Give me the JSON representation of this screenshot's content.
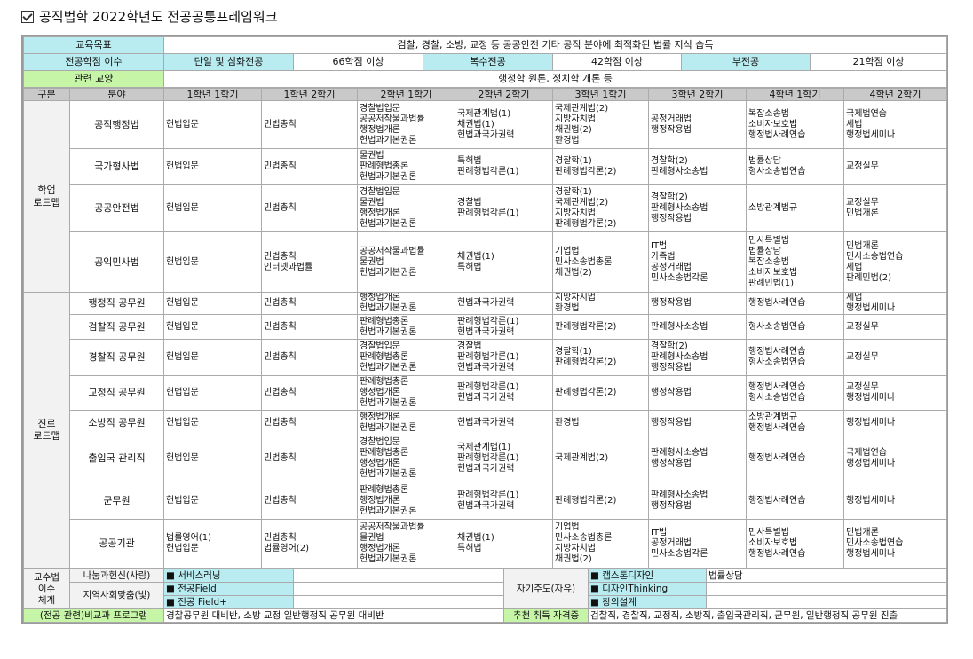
{
  "title": "공직법학 2022학년도 전공공통프레임워크",
  "goal": {
    "label": "교육목표",
    "text": "검찰, 경찰, 소방, 교정 등 공공안전 기타 공직 분야에 최적화된 법률 지식 습득"
  },
  "credits": {
    "label": "전공학점 이수",
    "single_label": "단일 및 심화전공",
    "single_value": "66학점 이상",
    "double_label": "복수전공",
    "double_value": "42학점 이상",
    "minor_label": "부전공",
    "minor_value": "21학점 이상"
  },
  "liberal": {
    "label": "관련 교양",
    "text": "행정학 원론, 정치학 개론 등"
  },
  "header": [
    "구분",
    "분야",
    "1학년 1학기",
    "1학년 2학기",
    "2학년 1학기",
    "2학년 2학기",
    "3학년 1학기",
    "3학년 2학기",
    "4학년 1학기",
    "4학년 2학기"
  ],
  "groups": [
    {
      "label": "학업\n로드맵",
      "rows": [
        {
          "field": "공직행정법",
          "cells": [
            "헌법입문",
            "민법총칙",
            "경찰법입문\n공공저작물과법률\n행정법개론\n헌법과기본권론",
            "국제관계법(1)\n채권법(1)\n헌법과국가권력",
            "국제관계법(2)\n지방자치법\n채권법(2)\n환경법",
            "공정거래법\n행정작용법",
            "복잡소송법\n소비자보호법\n행정법사례연습",
            "국제법연습\n세법\n행정법세미나"
          ]
        },
        {
          "field": "국가형사법",
          "cells": [
            "헌법입문",
            "민법총칙",
            "물권법\n판례형법총론\n헌법과기본권론",
            "특허법\n판례형법각론(1)",
            "경찰학(1)\n판례형법각론(2)",
            "경찰학(2)\n판례형사소송법",
            "법률상담\n형사소송법연습",
            "교정실무"
          ]
        },
        {
          "field": "공공안전법",
          "cells": [
            "헌법입문",
            "민법총칙",
            "경찰법입문\n물권법\n행정법개론\n헌법과기본권론",
            "경찰법\n판례형법각론(1)",
            "경찰학(1)\n국제관계법(2)\n지방자치법\n판례형법각론(2)",
            "경찰학(2)\n판례형사소송법\n행정작용법",
            "소방관계법규",
            "교정실무\n민법개론"
          ]
        },
        {
          "field": "공익민사법",
          "cells": [
            "헌법입문",
            "민법총칙\n인터넷과법률",
            "공공저작물과법률\n물권법\n헌법과기본권론",
            "채권법(1)\n특허법",
            "기업법\n민사소송법총론\n채권법(2)",
            "IT법\n가족법\n공정거래법\n민사소송법각론",
            "민사특별법\n법률상담\n복잡소송법\n소비자보호법\n판례민법(1)",
            "민법개론\n민사소송법연습\n세법\n판례민법(2)"
          ]
        }
      ]
    },
    {
      "label": "진로\n로드맵",
      "rows": [
        {
          "field": "행정직 공무원",
          "cells": [
            "헌법입문",
            "민법총칙",
            "행정법개론\n헌법과기본권론",
            "헌법과국가권력",
            "지방자치법\n환경법",
            "행정작용법",
            "행정법사례연습",
            "세법\n행정법세미나"
          ]
        },
        {
          "field": "검찰직 공무원",
          "cells": [
            "헌법입문",
            "민법총칙",
            "판례형법총론\n헌법과기본권론",
            "판례형법각론(1)\n헌법과국가권력",
            "판례형법각론(2)",
            "판례형사소송법",
            "형사소송법연습",
            "교정실무"
          ]
        },
        {
          "field": "경찰직 공무원",
          "cells": [
            "헌법입문",
            "민법총칙",
            "경찰법입문\n판례형법총론\n헌법과기본권론",
            "경찰법\n판례형법각론(1)\n헌법과국가권력",
            "경찰학(1)\n판례형법각론(2)",
            "경찰학(2)\n판례형사소송법\n행정작용법",
            "행정법사례연습\n형사소송법연습",
            "교정실무"
          ]
        },
        {
          "field": "교정직 공무원",
          "cells": [
            "헌법입문",
            "민법총칙",
            "판례형법총론\n행정법개론\n헌법과기본권론",
            "판례형법각론(1)\n헌법과국가권력",
            "판례형법각론(2)",
            "행정작용법",
            "행정법사례연습\n형사소송법연습",
            "교정실무\n행정법세미나"
          ]
        },
        {
          "field": "소방직 공무원",
          "cells": [
            "헌법입문",
            "민법총칙",
            "행정법개론\n헌법과기본권론",
            "헌법과국가권력",
            "환경법",
            "행정작용법",
            "소방관계법규\n행정법사례연습",
            "행정법세미나"
          ]
        },
        {
          "field": "출입국 관리직",
          "cells": [
            "헌법입문",
            "민법총칙",
            "경찰법입문\n판례형법총론\n행정법개론\n헌법과기본권론",
            "국제관계법(1)\n판례형법각론(1)\n헌법과국가권력",
            "국제관계법(2)",
            "판례형사소송법\n행정작용법",
            "행정법사례연습",
            "국제법연습\n행정법세미나"
          ]
        },
        {
          "field": "군무원",
          "cells": [
            "헌법입문",
            "민법총칙",
            "판례형법총론\n행정법개론\n헌법과기본권론",
            "판례형법각론(1)\n헌법과국가권력",
            "판례형법각론(2)",
            "판례형사소송법\n행정작용법",
            "행정법사례연습",
            "행정법세미나"
          ]
        },
        {
          "field": "공공기관",
          "cells": [
            "법률영어(1)\n헌법입문",
            "민법총칙\n법률영어(2)",
            "공공저작물과법률\n물권법\n행정법개론\n헌법과기본권론",
            "채권법(1)\n특허법",
            "기업법\n민사소송법총론\n지방자치법\n채권법(2)",
            "IT법\n공정거래법\n민사소송법각론",
            "민사특별법\n소비자보호법\n행정법사례연습",
            "민법개론\n민사소송법연습\n행정법세미나"
          ]
        }
      ]
    }
  ],
  "teaching": {
    "label": "교수법\n이수\n체계",
    "sharing_label": "나눔과헌신(사랑)",
    "regional_label": "지역사회맞춤(빛)",
    "service_learning": "■ 서비스러닝",
    "major_field": "■ 전공Field",
    "major_field_plus": "■ 전공 Field+",
    "self_label": "자기주도(자유)",
    "capstone": "■ 캡스톤디자인",
    "capstone_value": "법률상담",
    "design_thinking": "■ 디자인Thinking",
    "creative_design": "■ 창의설계"
  },
  "extracurricular": {
    "label": "(전공 관련)비교과 프로그램",
    "text": "경찰공무원 대비반, 소방 교정 일반행정직 공무원 대비반"
  },
  "certificates": {
    "label": "추천 취득 자격증",
    "text": "검찰직, 경찰직, 교정직, 소방직, 출입국관리직, 군무원, 일반행정직 공무원 진출"
  },
  "colors": {
    "cyan": "#b9ecf1",
    "green": "#c6f5a8",
    "header_gray": "#c9c9c9"
  }
}
